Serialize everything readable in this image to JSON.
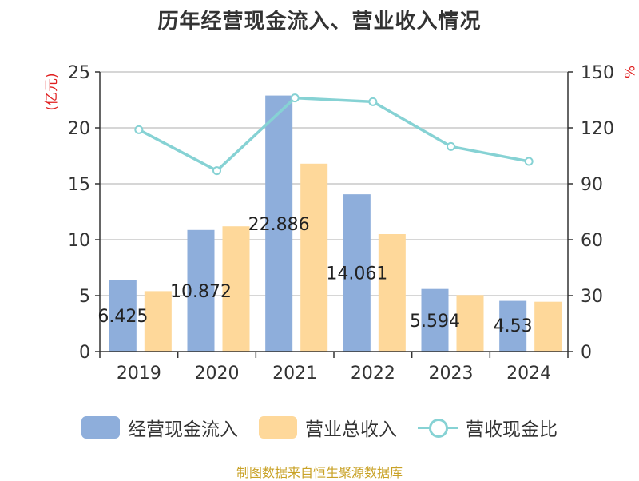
{
  "chart_data": {
    "type": "bar",
    "title": "历年经营现金流入、营业收入情况",
    "categories": [
      "2019",
      "2020",
      "2021",
      "2022",
      "2023",
      "2024"
    ],
    "y_left": {
      "label": "(亿元)",
      "range": [
        0,
        25
      ],
      "ticks": [
        "0",
        "5",
        "10",
        "15",
        "20",
        "25"
      ]
    },
    "y_right": {
      "label": "%",
      "range": [
        0,
        150
      ],
      "ticks": [
        "0",
        "30",
        "60",
        "90",
        "120",
        "150"
      ]
    },
    "series": [
      {
        "name": "经营现金流入",
        "type": "bar",
        "axis": "left",
        "color": "#8eaedb",
        "values": [
          6.425,
          10.872,
          22.886,
          14.061,
          5.594,
          4.53
        ],
        "labels": [
          "6.425",
          "10.872",
          "22.886",
          "14.061",
          "5.594",
          "4.53"
        ]
      },
      {
        "name": "营业总收入",
        "type": "bar",
        "axis": "left",
        "color": "#fed89a",
        "values": [
          5.4,
          11.2,
          16.8,
          10.5,
          5.05,
          4.45
        ]
      },
      {
        "name": "营收现金比",
        "type": "line",
        "axis": "right",
        "color": "#86d2d4",
        "values": [
          119,
          97,
          136,
          134,
          110,
          102
        ]
      }
    ],
    "grid": true,
    "legend_position": "bottom"
  },
  "source": "制图数据来自恒生聚源数据库"
}
